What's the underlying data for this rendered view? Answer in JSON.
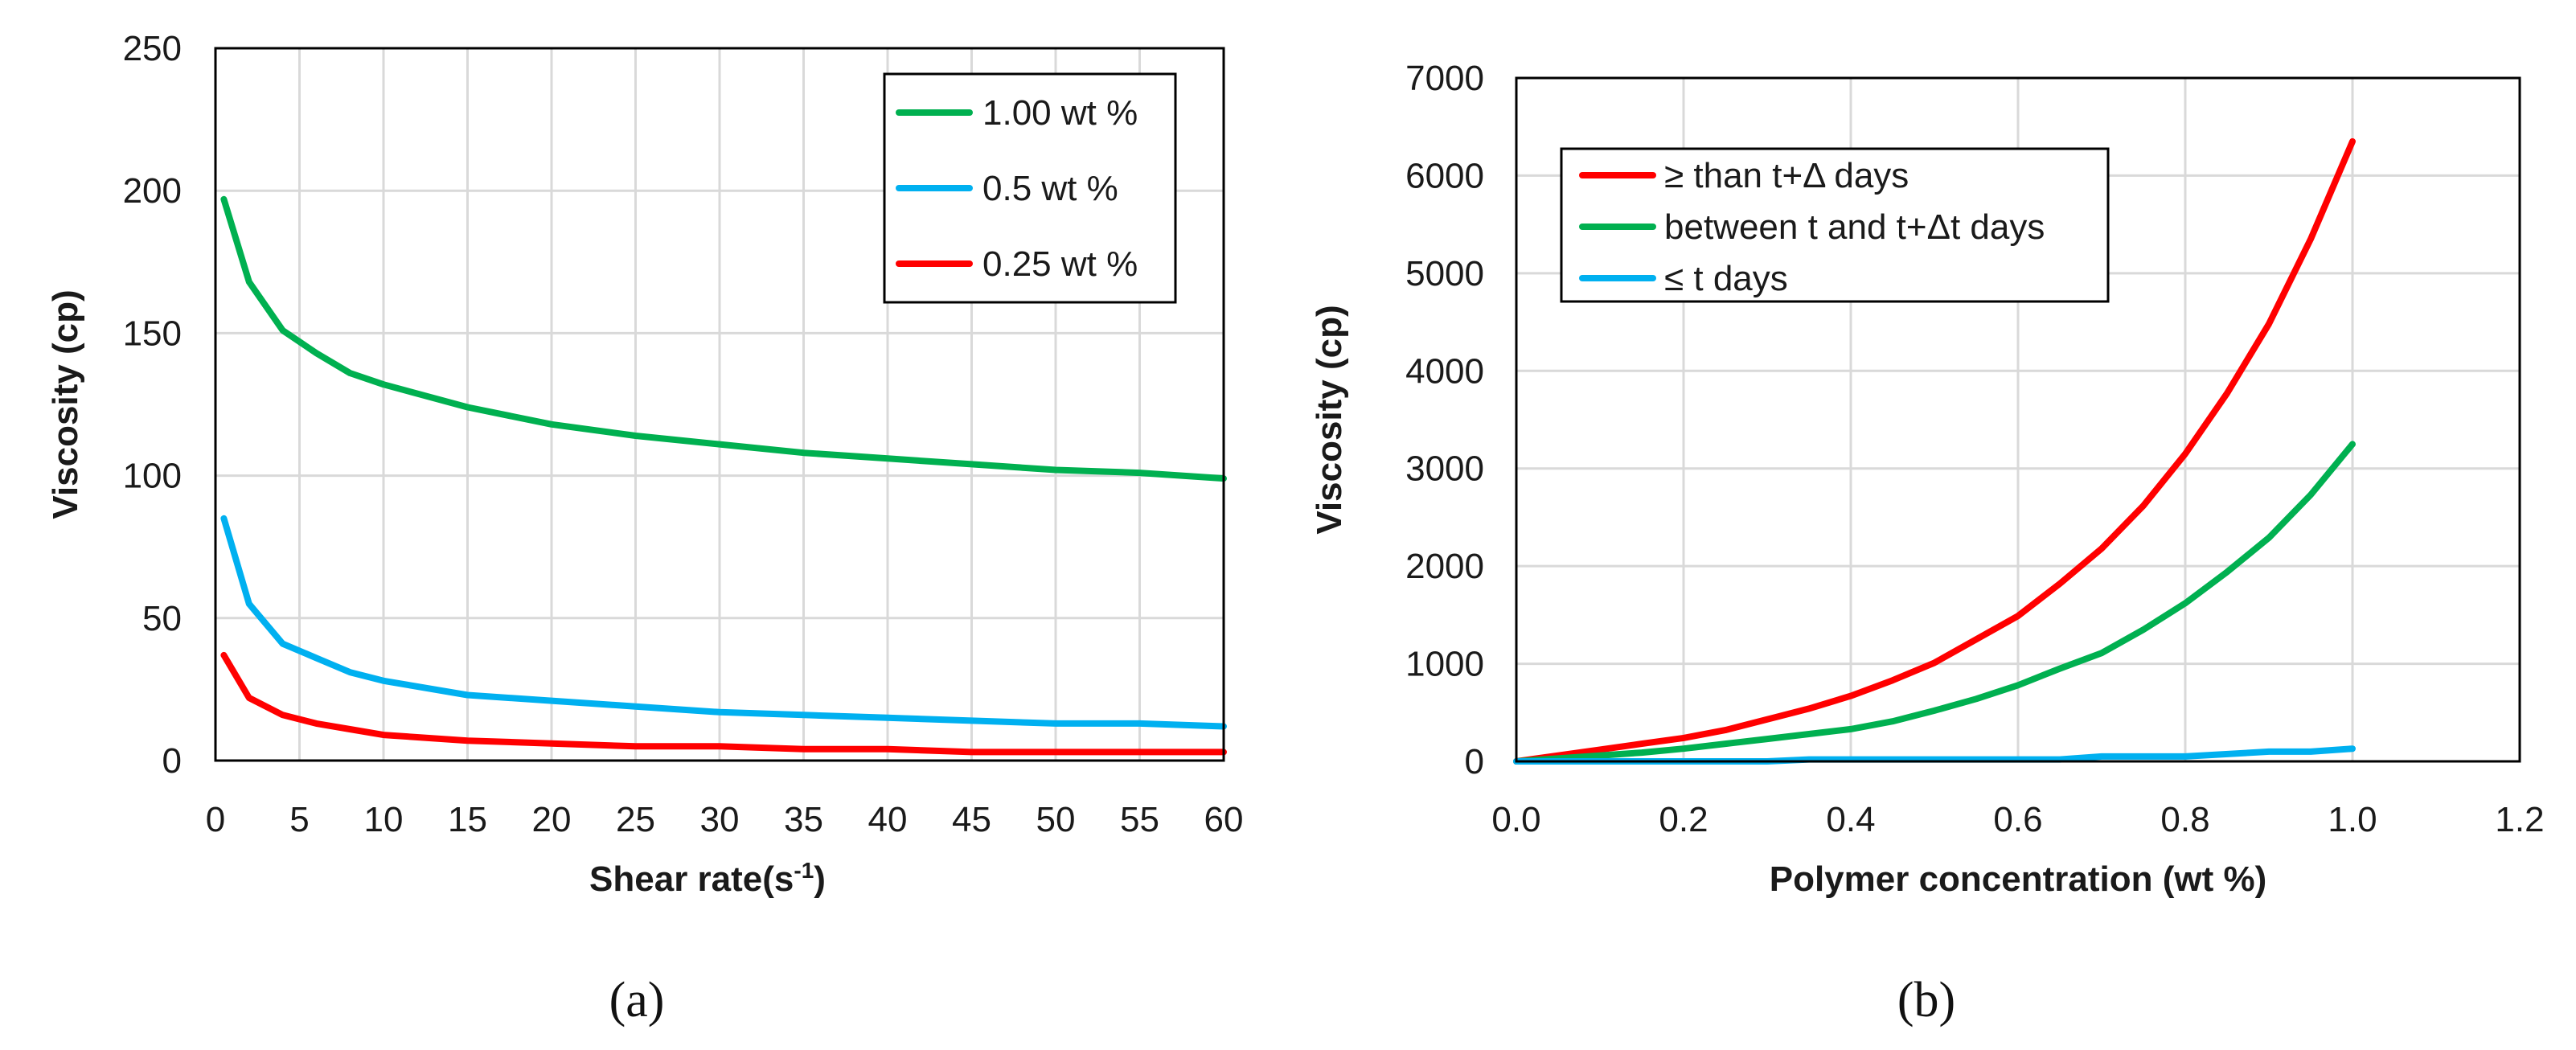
{
  "chart_data": [
    {
      "type": "line",
      "panel_label": "(a)",
      "title": "",
      "xlabel": "Shear rate(s",
      "xlabel_superscript": "-1",
      "xlabel_suffix": ")",
      "ylabel": "Viscosity (cp)",
      "xlim": [
        0,
        60
      ],
      "ylim": [
        0,
        250
      ],
      "xticks": [
        "0",
        "5",
        "10",
        "15",
        "20",
        "25",
        "30",
        "35",
        "40",
        "45",
        "50",
        "55",
        "60"
      ],
      "yticks": [
        "0",
        "50",
        "100",
        "150",
        "200",
        "250"
      ],
      "xtick_values": [
        0,
        5,
        10,
        15,
        20,
        25,
        30,
        35,
        40,
        45,
        50,
        55,
        60
      ],
      "ytick_values": [
        0,
        50,
        100,
        150,
        200,
        250
      ],
      "grid": true,
      "legend_position": "top-right",
      "series": [
        {
          "name": "1.00 wt %",
          "color": "#00b050",
          "x": [
            0.5,
            2,
            4,
            6,
            8,
            10,
            15,
            20,
            25,
            30,
            35,
            40,
            45,
            50,
            55,
            60
          ],
          "y": [
            197,
            168,
            151,
            143,
            136,
            132,
            124,
            118,
            114,
            111,
            108,
            106,
            104,
            102,
            101,
            99
          ]
        },
        {
          "name": "0.5 wt %",
          "color": "#00b0f0",
          "x": [
            0.5,
            2,
            4,
            6,
            8,
            10,
            15,
            20,
            25,
            30,
            35,
            40,
            45,
            50,
            55,
            60
          ],
          "y": [
            85,
            55,
            41,
            36,
            31,
            28,
            23,
            21,
            19,
            17,
            16,
            15,
            14,
            13,
            13,
            12
          ]
        },
        {
          "name": "0.25 wt %",
          "color": "#ff0000",
          "x": [
            0.5,
            2,
            4,
            6,
            8,
            10,
            15,
            20,
            25,
            30,
            35,
            40,
            45,
            50,
            55,
            60
          ],
          "y": [
            37,
            22,
            16,
            13,
            11,
            9,
            7,
            6,
            5,
            5,
            4,
            4,
            3,
            3,
            3,
            3
          ]
        }
      ]
    },
    {
      "type": "line",
      "panel_label": "(b)",
      "title": "",
      "xlabel": "Polymer concentration (wt %)",
      "ylabel": "Viscosity (cp)",
      "xlim": [
        0,
        1.2
      ],
      "ylim": [
        0,
        7000
      ],
      "xticks": [
        "0.0",
        "0.2",
        "0.4",
        "0.6",
        "0.8",
        "1.0",
        "1.2"
      ],
      "yticks": [
        "0",
        "1000",
        "2000",
        "3000",
        "4000",
        "5000",
        "6000",
        "7000"
      ],
      "xtick_values": [
        0,
        0.2,
        0.4,
        0.6,
        0.8,
        1.0,
        1.2
      ],
      "ytick_values": [
        0,
        1000,
        2000,
        3000,
        4000,
        5000,
        6000,
        7000
      ],
      "grid": true,
      "legend_position": "top-left",
      "series": [
        {
          "name": "≥ than t+Δ days",
          "color": "#ff0000",
          "x": [
            0,
            0.05,
            0.1,
            0.15,
            0.2,
            0.25,
            0.3,
            0.35,
            0.4,
            0.45,
            0.5,
            0.55,
            0.6,
            0.65,
            0.7,
            0.75,
            0.8,
            0.85,
            0.9,
            0.95,
            1.0
          ],
          "y": [
            0,
            60,
            120,
            180,
            240,
            320,
            430,
            540,
            670,
            830,
            1010,
            1250,
            1490,
            1820,
            2180,
            2620,
            3150,
            3770,
            4480,
            5350,
            6350
          ]
        },
        {
          "name": "between t and t+Δt days",
          "color": "#00b050",
          "x": [
            0,
            0.05,
            0.1,
            0.15,
            0.2,
            0.25,
            0.3,
            0.35,
            0.4,
            0.45,
            0.5,
            0.55,
            0.6,
            0.65,
            0.7,
            0.75,
            0.8,
            0.85,
            0.9,
            0.95,
            1.0
          ],
          "y": [
            0,
            30,
            60,
            90,
            130,
            180,
            230,
            280,
            330,
            410,
            520,
            640,
            780,
            950,
            1110,
            1350,
            1620,
            1940,
            2290,
            2730,
            3250
          ]
        },
        {
          "name": "≤ t days",
          "color": "#00b0f0",
          "x": [
            0,
            0.1,
            0.2,
            0.3,
            0.35,
            0.4,
            0.5,
            0.6,
            0.65,
            0.7,
            0.8,
            0.9,
            0.95,
            1.0
          ],
          "y": [
            0,
            0,
            0,
            0,
            20,
            20,
            20,
            20,
            20,
            50,
            50,
            100,
            100,
            130
          ]
        }
      ]
    }
  ]
}
